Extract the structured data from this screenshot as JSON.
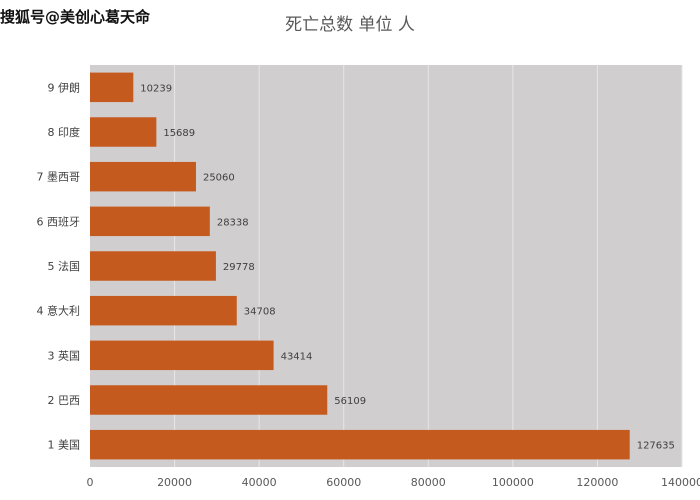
{
  "watermark": "搜狐号@美创心葛天命",
  "colors": {
    "bar": "#c55a1f",
    "plot_background": "#d0cece",
    "gridline": "#e7e6e6"
  },
  "chart_data": {
    "type": "bar",
    "orientation": "horizontal",
    "title": "死亡总数 单位 人",
    "xlabel": "",
    "ylabel": "",
    "categories": [
      "1 美国",
      "2 巴西",
      "3 英国",
      "4 意大利",
      "5 法国",
      "6 西班牙",
      "7 墨西哥",
      "8 印度",
      "9 伊朗"
    ],
    "values": [
      127635,
      56109,
      43414,
      34708,
      29778,
      28338,
      25060,
      15689,
      10239
    ],
    "xlim": [
      0,
      140000
    ],
    "x_ticks": [
      0,
      20000,
      40000,
      60000,
      80000,
      100000,
      120000,
      140000
    ],
    "grid": true,
    "legend": "none",
    "data_labels": true
  }
}
